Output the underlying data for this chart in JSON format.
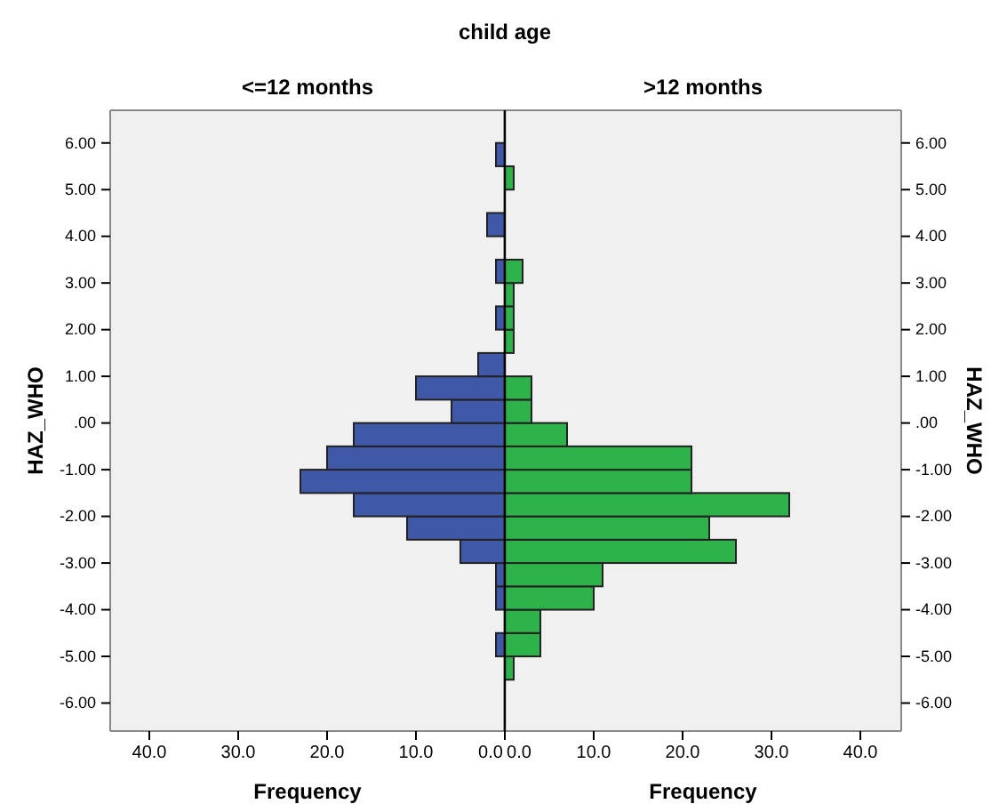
{
  "chart_data": [
    {
      "type": "histogram",
      "orientation": "horizontal",
      "title": "child age",
      "subtitle": "<=12 months",
      "xlabel": "Frequency",
      "ylabel": "HAZ_WHO",
      "color": "#3f58a8",
      "bins": [
        -5.5,
        -5,
        -4.5,
        -4,
        -3.5,
        -3,
        -2.5,
        -2,
        -1.5,
        -1,
        -0.5,
        0,
        0.5,
        1,
        1.5,
        2,
        2.5,
        3,
        3.5,
        4,
        4.5,
        5,
        5.5,
        6
      ],
      "values": [
        0,
        1,
        0,
        1,
        1,
        5,
        11,
        17,
        23,
        20,
        17,
        6,
        10,
        3,
        0,
        1,
        0,
        1,
        0,
        2,
        0,
        0,
        1
      ],
      "xlim": [
        44.4,
        0
      ],
      "xticks": [
        {
          "value": 40,
          "label": "40.0"
        },
        {
          "value": 30,
          "label": "30.0"
        },
        {
          "value": 20,
          "label": "20.0"
        },
        {
          "value": 10,
          "label": "10.0"
        },
        {
          "value": 0,
          "label": "0.0"
        }
      ],
      "ylim": [
        -6.6,
        6.7
      ],
      "yticks": [
        {
          "value": 6,
          "label": "6.00"
        },
        {
          "value": 5,
          "label": "5.00"
        },
        {
          "value": 4,
          "label": "4.00"
        },
        {
          "value": 3,
          "label": "3.00"
        },
        {
          "value": 2,
          "label": "2.00"
        },
        {
          "value": 1,
          "label": "1.00"
        },
        {
          "value": 0,
          "label": ".00"
        },
        {
          "value": -1,
          "label": "-1.00"
        },
        {
          "value": -2,
          "label": "-2.00"
        },
        {
          "value": -3,
          "label": "-3.00"
        },
        {
          "value": -4,
          "label": "-4.00"
        },
        {
          "value": -5,
          "label": "-5.00"
        },
        {
          "value": -6,
          "label": "-6.00"
        }
      ]
    },
    {
      "type": "histogram",
      "orientation": "horizontal",
      "subtitle": ">12 months",
      "xlabel": "Frequency",
      "ylabel": "HAZ_WHO",
      "color": "#2db34a",
      "bins": [
        -5.5,
        -5,
        -4.5,
        -4,
        -3.5,
        -3,
        -2.5,
        -2,
        -1.5,
        -1,
        -0.5,
        0,
        0.5,
        1,
        1.5,
        2,
        2.5,
        3,
        3.5,
        4,
        4.5,
        5,
        5.5,
        6
      ],
      "values": [
        1,
        4,
        4,
        10,
        11,
        26,
        23,
        32,
        21,
        21,
        7,
        3,
        3,
        0,
        1,
        1,
        1,
        2,
        0,
        0,
        0,
        1,
        0
      ],
      "xlim": [
        0,
        44.6
      ],
      "xticks": [
        {
          "value": 0,
          "label": "0.0"
        },
        {
          "value": 10,
          "label": "10.0"
        },
        {
          "value": 20,
          "label": "20.0"
        },
        {
          "value": 30,
          "label": "30.0"
        },
        {
          "value": 40,
          "label": "40.0"
        }
      ],
      "ylim": [
        -6.6,
        6.7
      ],
      "yticks": [
        {
          "value": 6,
          "label": "6.00"
        },
        {
          "value": 5,
          "label": "5.00"
        },
        {
          "value": 4,
          "label": "4.00"
        },
        {
          "value": 3,
          "label": "3.00"
        },
        {
          "value": 2,
          "label": "2.00"
        },
        {
          "value": 1,
          "label": "1.00"
        },
        {
          "value": 0,
          "label": ".00"
        },
        {
          "value": -1,
          "label": "-1.00"
        },
        {
          "value": -2,
          "label": "-2.00"
        },
        {
          "value": -3,
          "label": "-3.00"
        },
        {
          "value": -4,
          "label": "-4.00"
        },
        {
          "value": -5,
          "label": "-5.00"
        },
        {
          "value": -6,
          "label": "-6.00"
        }
      ]
    }
  ]
}
